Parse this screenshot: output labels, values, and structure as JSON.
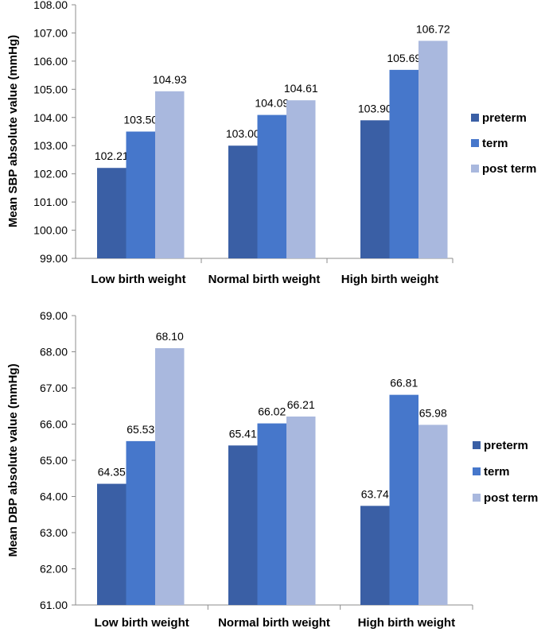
{
  "chart_data": [
    {
      "type": "bar",
      "title": "",
      "xlabel": "",
      "ylabel": "Mean SBP absolute value (mmHg)",
      "ylim": [
        99.0,
        108.0
      ],
      "ytick_step": 1.0,
      "ytick_labels": [
        "99.00",
        "100.00",
        "101.00",
        "102.00",
        "103.00",
        "104.00",
        "105.00",
        "106.00",
        "107.00",
        "108.00"
      ],
      "categories": [
        "Low birth weight",
        "Normal birth weight",
        "High birth weight"
      ],
      "series": [
        {
          "name": "preterm",
          "color": "#3a5fa5",
          "values": [
            102.21,
            103.0,
            103.9
          ],
          "labels": [
            "102.21",
            "103.00",
            "103.90"
          ]
        },
        {
          "name": "term",
          "color": "#4677cb",
          "values": [
            103.5,
            104.09,
            105.69
          ],
          "labels": [
            "103.50",
            "104.09",
            "105.69"
          ]
        },
        {
          "name": "post term",
          "color": "#a9b8de",
          "values": [
            104.93,
            104.61,
            106.72
          ],
          "labels": [
            "104.93",
            "104.61",
            "106.72"
          ]
        }
      ],
      "legend": "right",
      "grid": false
    },
    {
      "type": "bar",
      "title": "",
      "xlabel": "",
      "ylabel": "Mean DBP absolute value (mmHg)",
      "ylim": [
        61.0,
        69.0
      ],
      "ytick_step": 1.0,
      "ytick_labels": [
        "61.00",
        "62.00",
        "63.00",
        "64.00",
        "65.00",
        "66.00",
        "67.00",
        "68.00",
        "69.00"
      ],
      "categories": [
        "Low birth weight",
        "Normal birth weight",
        "High birth weight"
      ],
      "series": [
        {
          "name": "preterm",
          "color": "#3a5fa5",
          "values": [
            64.35,
            65.41,
            63.74
          ],
          "labels": [
            "64.35",
            "65.41",
            "63.74"
          ]
        },
        {
          "name": "term",
          "color": "#4677cb",
          "values": [
            65.53,
            66.02,
            66.81
          ],
          "labels": [
            "65.53",
            "66.02",
            "66.81"
          ]
        },
        {
          "name": "post term",
          "color": "#a9b8de",
          "values": [
            68.1,
            66.21,
            65.98
          ],
          "labels": [
            "68.10",
            "66.21",
            "65.98"
          ]
        }
      ],
      "legend": "right",
      "grid": false
    }
  ]
}
